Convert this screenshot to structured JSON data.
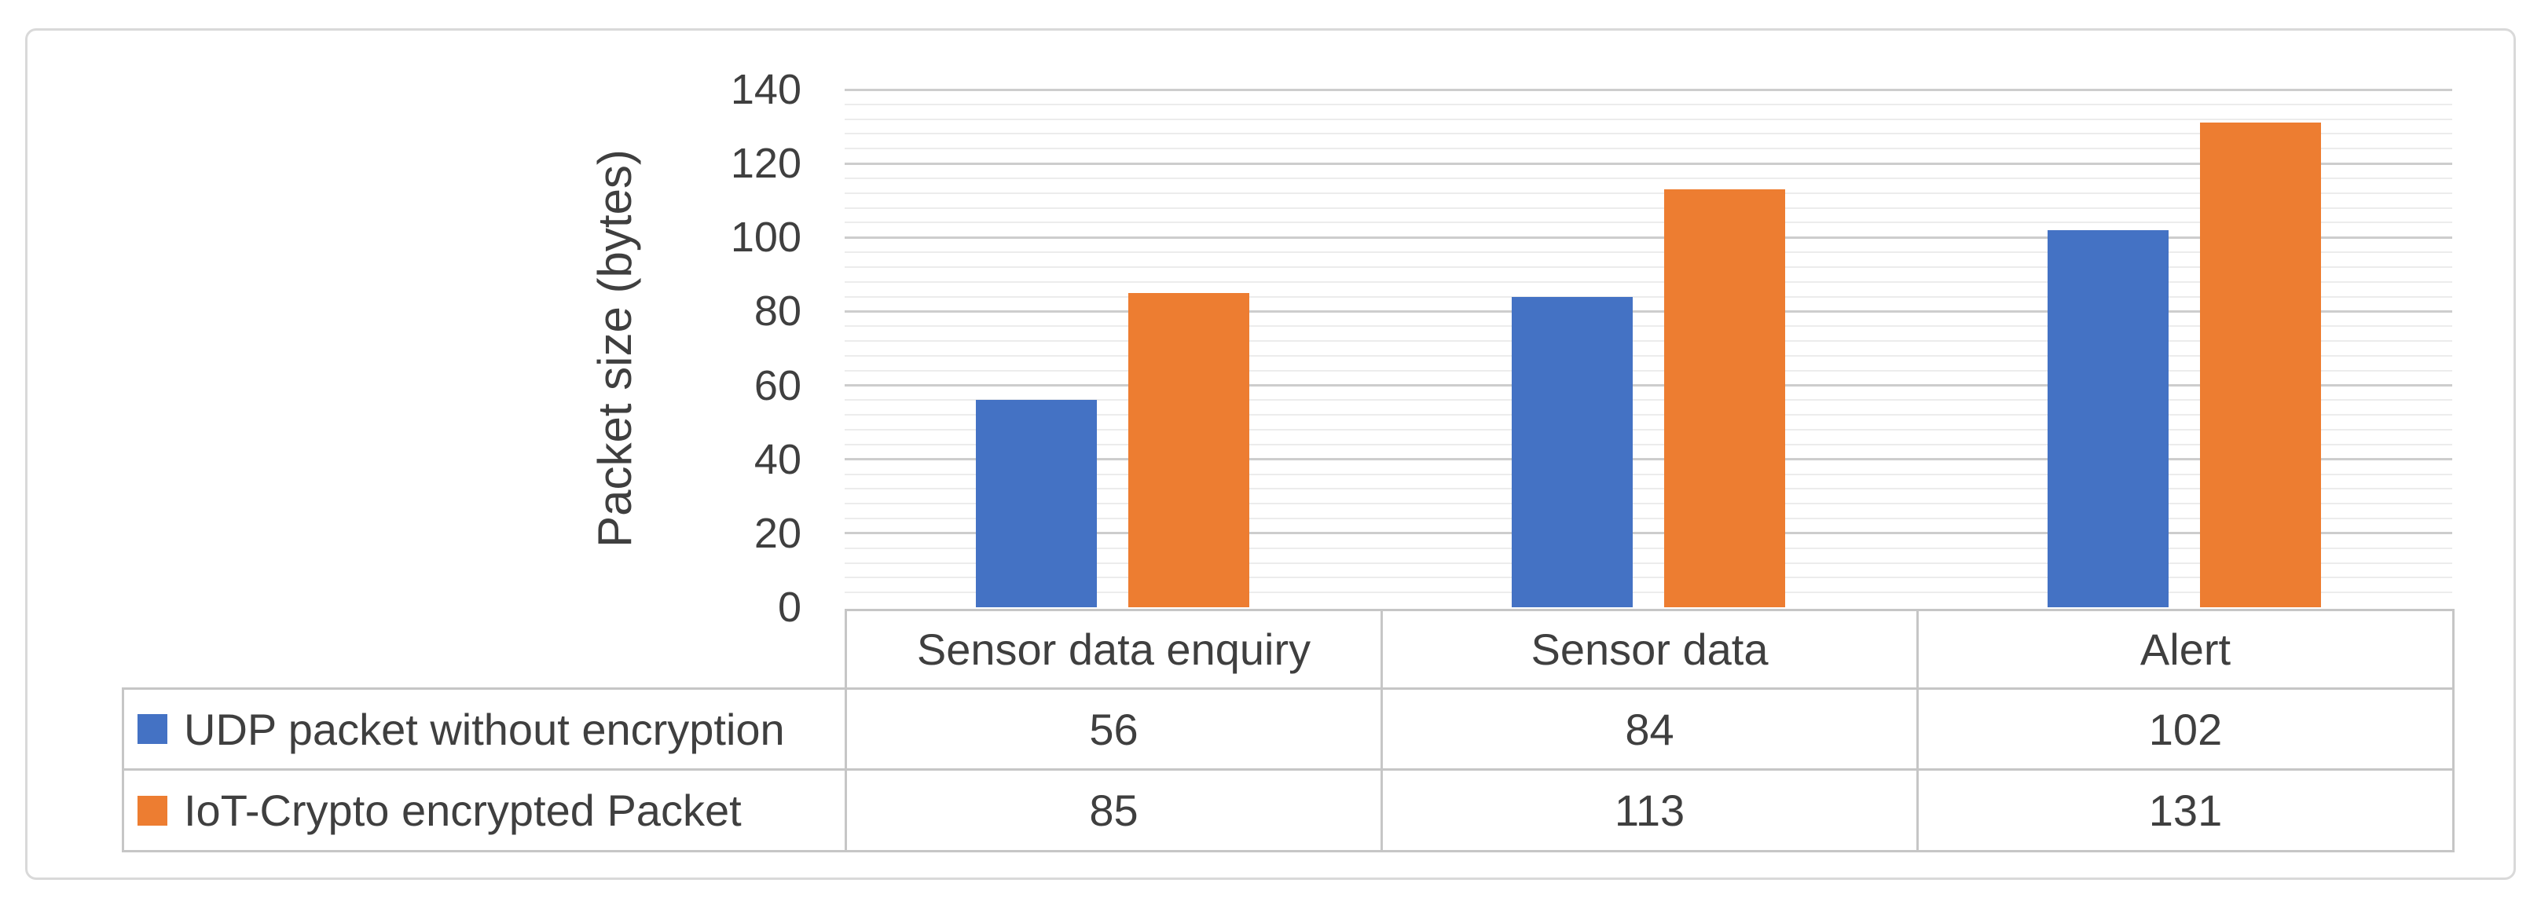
{
  "chart_data": {
    "type": "bar",
    "title": "",
    "categories": [
      "Sensor data enquiry",
      "Sensor data",
      "Alert"
    ],
    "series": [
      {
        "name": "UDP packet without encryption",
        "color": "#4472c4",
        "values": [
          56,
          84,
          102
        ]
      },
      {
        "name": "IoT-Crypto encrypted Packet",
        "color": "#ed7d31",
        "values": [
          85,
          113,
          131
        ]
      }
    ],
    "xlabel": "",
    "ylabel": "Packet size (bytes)",
    "ylim": [
      0,
      140
    ],
    "y_major_unit": 20,
    "y_minor_unit": 4,
    "y_ticks": [
      0,
      20,
      40,
      60,
      80,
      100,
      120,
      140
    ],
    "grid": "horizontal, major and minor gridlines",
    "legend_position": "data table, left column with color swatches",
    "colors": {
      "grid_major": "#cdcdcd",
      "grid_minor": "#ececec",
      "table_border": "#c6c6c6",
      "frame_border": "#d9d9d9",
      "text": "#3f3f3f",
      "background": "#ffffff"
    }
  }
}
